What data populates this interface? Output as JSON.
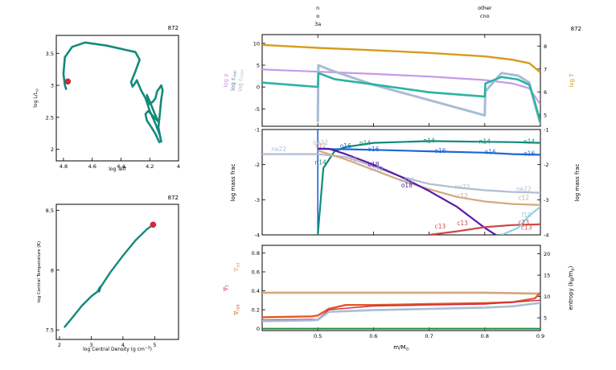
{
  "colors": {
    "track": "#138a7a",
    "current_dot": "#d0283a",
    "frame": "#000000",
    "log_rho": "#c79ae8",
    "log_epsnuc": "#5c82a6",
    "log_epsmax": "#a8bcd6",
    "log_T": "#d89b1a",
    "sigma_ad": "#d3a67f",
    "sigma_rad": "#e05a2b",
    "entropy": "#a9bed6"
  },
  "chart_data": [
    {
      "id": "hr",
      "type": "line",
      "title": "",
      "model_number": "872",
      "xlabel": "log Teff",
      "ylabel": "log L/Lsun",
      "xlim": [
        4.85,
        4.0
      ],
      "ylim": [
        1.82,
        3.78
      ],
      "x_ticks": [
        "4.8",
        "4.6",
        "4.4",
        "4.2",
        "4"
      ],
      "y_ticks": [
        "2",
        "2.5",
        "3",
        "3.5"
      ],
      "series": [
        {
          "x": [
            4.78,
            4.79,
            4.8,
            4.79,
            4.74,
            4.65,
            4.5,
            4.38,
            4.3,
            4.27,
            4.3,
            4.33,
            4.32,
            4.3,
            4.29,
            4.26,
            4.23,
            4.2,
            4.16,
            4.13,
            4.12,
            4.14,
            4.13,
            4.12,
            4.11,
            4.12,
            4.15,
            4.16,
            4.18,
            4.21,
            4.22,
            4.2,
            4.17,
            4.14,
            4.21,
            4.23,
            4.22,
            4.19,
            4.16,
            4.14,
            4.13
          ],
          "y": [
            2.93,
            3.0,
            3.18,
            3.44,
            3.6,
            3.67,
            3.62,
            3.56,
            3.52,
            3.4,
            3.22,
            3.05,
            2.98,
            3.04,
            3.08,
            2.92,
            2.8,
            2.6,
            2.4,
            2.22,
            2.12,
            2.34,
            2.56,
            2.78,
            2.92,
            3.0,
            2.9,
            2.8,
            2.74,
            2.7,
            2.85,
            2.75,
            2.58,
            2.43,
            2.6,
            2.55,
            2.45,
            2.35,
            2.24,
            2.14,
            2.1
          ]
        }
      ],
      "current_point": {
        "x": 4.77,
        "y": 3.06
      }
    },
    {
      "id": "center",
      "type": "line",
      "title": "",
      "model_number": "872",
      "xlabel": "log Central Density (g cm^-3)",
      "ylabel": "log Central Temperature (K)",
      "xlim": [
        1.9,
        5.75
      ],
      "ylim": [
        7.42,
        8.55
      ],
      "x_ticks": [
        "2",
        "3",
        "4",
        "5"
      ],
      "y_ticks": [
        "7.5",
        "8",
        "8.5"
      ],
      "series": [
        {
          "x": [
            2.15,
            2.4,
            2.7,
            3.0,
            3.2,
            3.28,
            3.25,
            3.3,
            3.6,
            4.0,
            4.4,
            4.75,
            4.95
          ],
          "y": [
            7.52,
            7.6,
            7.7,
            7.78,
            7.82,
            7.86,
            7.82,
            7.86,
            7.98,
            8.12,
            8.25,
            8.34,
            8.38
          ]
        }
      ],
      "current_point": {
        "x": 4.95,
        "y": 8.38
      }
    },
    {
      "id": "structure",
      "type": "line",
      "title": "",
      "model_number": "872",
      "top_markers": [
        {
          "x": 0.5,
          "lines": [
            "n",
            "o",
            "3a"
          ]
        },
        {
          "x": 0.8,
          "lines": [
            "other",
            "cno"
          ]
        }
      ],
      "xlim": [
        0.4,
        0.9
      ],
      "ylim": [
        -9,
        12
      ],
      "y_ticks": [
        "-5",
        "0",
        "5",
        "10"
      ],
      "ylim_right": [
        4.5,
        8.5
      ],
      "y_ticks_right": [
        "5",
        "6",
        "7",
        "8"
      ],
      "ylabels_left": [
        "log ρ",
        "log εnuc",
        "log εmax"
      ],
      "ylabel_right": "log T",
      "series": [
        {
          "name": "log ρ",
          "color_key": "log_rho",
          "axis": "left",
          "x": [
            0.4,
            0.5,
            0.6,
            0.7,
            0.8,
            0.85,
            0.88,
            0.9
          ],
          "y": [
            4.0,
            3.5,
            3.0,
            2.4,
            1.6,
            0.8,
            -0.3,
            -4.0
          ]
        },
        {
          "name": "log εnuc",
          "color_key": "log_epsnuc",
          "axis": "left",
          "x": [
            0.4,
            0.5,
            0.501,
            0.53,
            0.6,
            0.7,
            0.8,
            0.801,
            0.83,
            0.86,
            0.88,
            0.89,
            0.9
          ],
          "y": [
            1.0,
            0.0,
            3.2,
            1.8,
            0.6,
            -1.2,
            -2.2,
            0.8,
            2.3,
            1.7,
            0.5,
            -3.5,
            -8.0
          ]
        },
        {
          "name": "log εmax",
          "color_key": "log_epsmax",
          "axis": "left",
          "x": [
            0.5,
            0.501,
            0.52,
            0.6,
            0.7,
            0.8,
            0.801,
            0.83,
            0.86,
            0.88,
            0.89,
            0.9
          ],
          "y": [
            -8.0,
            5.0,
            4.0,
            0.5,
            -3.0,
            -6.5,
            -1.0,
            3.2,
            2.6,
            1.0,
            -4.0,
            -8.5
          ]
        },
        {
          "name": "log T",
          "color_key": "log_T",
          "axis": "right",
          "x": [
            0.4,
            0.5,
            0.6,
            0.7,
            0.8,
            0.85,
            0.88,
            0.9
          ],
          "y": [
            8.05,
            7.92,
            7.82,
            7.7,
            7.55,
            7.4,
            7.25,
            6.85
          ]
        }
      ]
    },
    {
      "id": "abundances",
      "type": "line",
      "title": "",
      "xlim": [
        0.4,
        0.9
      ],
      "ylim": [
        -4,
        -1
      ],
      "y_ticks": [
        "-4",
        "-3",
        "-2",
        "-1"
      ],
      "ylabel": "log mass frac",
      "ylabel_right": "log mass frac",
      "series": [
        {
          "name": "n14",
          "color": "#138a7a",
          "x": [
            0.5,
            0.51,
            0.53,
            0.55,
            0.6,
            0.7,
            0.8,
            0.85,
            0.9
          ],
          "y": [
            -4,
            -2.1,
            -1.62,
            -1.5,
            -1.38,
            -1.33,
            -1.35,
            -1.36,
            -1.38
          ]
        },
        {
          "name": "o16",
          "color": "#1e64d8",
          "x": [
            0.5,
            0.51,
            0.53,
            0.55,
            0.6,
            0.7,
            0.8,
            0.85,
            0.9
          ],
          "y": [
            -1.55,
            -1.55,
            -1.56,
            -1.56,
            -1.58,
            -1.62,
            -1.66,
            -1.7,
            -1.72
          ]
        },
        {
          "name": "ne22",
          "color": "#aebed4",
          "x": [
            0.4,
            0.5,
            0.55,
            0.6,
            0.65,
            0.7,
            0.75,
            0.8,
            0.85,
            0.9
          ],
          "y": [
            -1.7,
            -1.7,
            -1.78,
            -2.05,
            -2.35,
            -2.55,
            -2.65,
            -2.73,
            -2.78,
            -2.8
          ]
        },
        {
          "name": "c12",
          "color": "#d1aa82",
          "x": [
            0.5,
            0.55,
            0.6,
            0.65,
            0.7,
            0.75,
            0.8,
            0.85,
            0.9
          ],
          "y": [
            -1.6,
            -1.85,
            -2.15,
            -2.45,
            -2.7,
            -2.92,
            -3.05,
            -3.12,
            -3.15
          ]
        },
        {
          "name": "o18",
          "color": "#5a1aa6",
          "x": [
            0.5,
            0.52,
            0.55,
            0.6,
            0.65,
            0.7,
            0.75,
            0.8,
            0.82
          ],
          "y": [
            -1.55,
            -1.55,
            -1.7,
            -2.0,
            -2.35,
            -2.75,
            -3.2,
            -3.8,
            -4
          ]
        },
        {
          "name": "c13",
          "color": "#d04848",
          "x": [
            0.7,
            0.75,
            0.8,
            0.85,
            0.9
          ],
          "y": [
            -4,
            -3.9,
            -3.78,
            -3.72,
            -3.7
          ]
        },
        {
          "name": "f19",
          "color": "#8fd0e8",
          "x": [
            0.83,
            0.86,
            0.88,
            0.9
          ],
          "y": [
            -4,
            -3.8,
            -3.45,
            -3.2
          ]
        }
      ],
      "labels": [
        {
          "text": "ne22",
          "color_key": "ne22",
          "x": 0.43,
          "y": -1.62
        },
        {
          "text": "ne22",
          "color_key": "ne22",
          "x": 0.505,
          "y": -1.43
        },
        {
          "text": "c12",
          "color_key": "c12",
          "x": 0.505,
          "y": -1.52
        },
        {
          "text": "o16",
          "color_key": "o16",
          "x": 0.55,
          "y": -1.53
        },
        {
          "text": "n14",
          "color_key": "n14",
          "x": 0.585,
          "y": -1.45
        },
        {
          "text": "n14",
          "color_key": "n14",
          "x": 0.7,
          "y": -1.38
        },
        {
          "text": "n14",
          "color_key": "n14",
          "x": 0.8,
          "y": -1.4
        },
        {
          "text": "n14",
          "color_key": "n14",
          "x": 0.88,
          "y": -1.4
        },
        {
          "text": "o16",
          "color_key": "o16",
          "x": 0.6,
          "y": -1.62
        },
        {
          "text": "o16",
          "color_key": "o16",
          "x": 0.72,
          "y": -1.66
        },
        {
          "text": "o16",
          "color_key": "o16",
          "x": 0.81,
          "y": -1.7
        },
        {
          "text": "o16",
          "color_key": "o16",
          "x": 0.88,
          "y": -1.74
        },
        {
          "text": "n14",
          "color_key": "n14",
          "x": 0.505,
          "y": -2.0
        },
        {
          "text": "o18",
          "color_key": "o18",
          "x": 0.6,
          "y": -2.05
        },
        {
          "text": "ne22",
          "color_key": "ne22",
          "x": 0.605,
          "y": -2.18
        },
        {
          "text": "c12",
          "color_key": "c12",
          "x": 0.56,
          "y": -1.9
        },
        {
          "text": "ne22",
          "color_key": "ne22",
          "x": 0.66,
          "y": -2.5
        },
        {
          "text": "o18",
          "color_key": "o18",
          "x": 0.66,
          "y": -2.65
        },
        {
          "text": "ne22",
          "color_key": "ne22",
          "x": 0.76,
          "y": -2.7
        },
        {
          "text": "ne22",
          "color_key": "ne22",
          "x": 0.87,
          "y": -2.75
        },
        {
          "text": "c12",
          "color_key": "c12",
          "x": 0.76,
          "y": -2.95
        },
        {
          "text": "c12",
          "color_key": "c12",
          "x": 0.87,
          "y": -3.0
        },
        {
          "text": "c13",
          "color_key": "c13",
          "x": 0.72,
          "y": -3.82
        },
        {
          "text": "c13",
          "color_key": "c13",
          "x": 0.76,
          "y": -3.72
        },
        {
          "text": "c13",
          "color_key": "c13",
          "x": 0.87,
          "y": -3.7
        },
        {
          "text": "f19",
          "color_key": "f19",
          "x": 0.875,
          "y": -3.5
        },
        {
          "text": "c13",
          "color_key": "c13",
          "x": 0.875,
          "y": -3.85
        }
      ]
    },
    {
      "id": "gradients",
      "type": "line",
      "xlim": [
        0.4,
        0.9
      ],
      "ylim": [
        -0.02,
        0.88
      ],
      "y_ticks": [
        "0",
        "0.2",
        "0.4",
        "0.6",
        "0.8"
      ],
      "ylim_right": [
        2,
        22
      ],
      "y_ticks_right": [
        "5",
        "10",
        "15",
        "20"
      ],
      "x_ticks": [
        "0.5",
        "0.6",
        "0.7",
        "0.8",
        "0.9"
      ],
      "xlabel": "m/M⊙",
      "ylabel_left_labels": [
        "∇ad",
        "∇T",
        "∇rad"
      ],
      "ylabel_right": "entropy (kB/mp)",
      "series": [
        {
          "name": "∇ad",
          "color_key": "sigma_ad",
          "axis": "left",
          "x": [
            0.4,
            0.5,
            0.6,
            0.7,
            0.8,
            0.9
          ],
          "y": [
            0.38,
            0.38,
            0.38,
            0.38,
            0.38,
            0.37
          ]
        },
        {
          "name": "∇rad",
          "color_key": "sigma_rad",
          "axis": "left",
          "x": [
            0.4,
            0.49,
            0.5,
            0.52,
            0.55,
            0.6,
            0.7,
            0.8,
            0.85,
            0.89,
            0.9
          ],
          "y": [
            0.12,
            0.13,
            0.14,
            0.21,
            0.25,
            0.25,
            0.26,
            0.27,
            0.28,
            0.32,
            0.38
          ]
        },
        {
          "name": "∇T",
          "color_key": "sigma_rad",
          "axis": "left",
          "x": [
            0.4,
            0.5,
            0.52,
            0.6,
            0.7,
            0.8,
            0.9
          ],
          "y": [
            0.09,
            0.1,
            0.2,
            0.24,
            0.25,
            0.26,
            0.3
          ]
        },
        {
          "name": "entropy",
          "color_key": "entropy",
          "axis": "right",
          "x": [
            0.4,
            0.49,
            0.5,
            0.52,
            0.6,
            0.7,
            0.8,
            0.85,
            0.9
          ],
          "y": [
            4.2,
            4.4,
            4.5,
            6.4,
            6.8,
            7.1,
            7.4,
            7.7,
            8.5
          ]
        },
        {
          "name": "base",
          "color": "#1f8f3a",
          "axis": "left",
          "x": [
            0.4,
            0.9
          ],
          "y": [
            0.0,
            0.0
          ]
        }
      ]
    }
  ]
}
